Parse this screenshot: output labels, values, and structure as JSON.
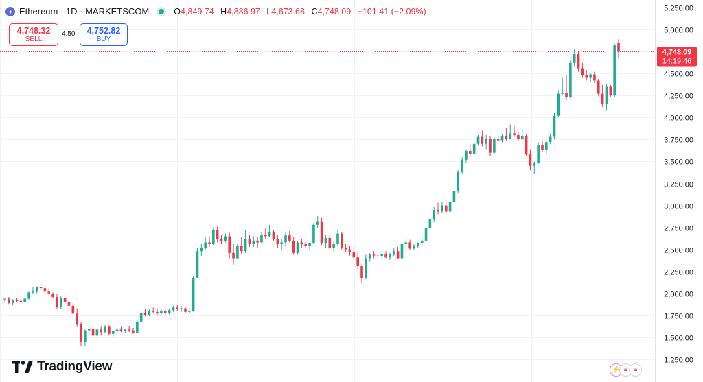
{
  "header": {
    "symbol": "Ethereum · 1D · MARKETSCOM",
    "open_label": "O",
    "open_value": "4,849.74",
    "high_label": "H",
    "high_value": "4,886.97",
    "low_label": "L",
    "low_value": "4,673.68",
    "close_label": "C",
    "close_value": "4,748.09",
    "change": "−101.41 (−2.09%)"
  },
  "trade": {
    "sell_price": "4,748.32",
    "sell_label": "SELL",
    "spread": "4.50",
    "buy_price": "4,752.82",
    "buy_label": "BUY"
  },
  "price_tag": {
    "price": "4,748.09",
    "countdown": "14:19:46"
  },
  "branding": {
    "name": "TradingView"
  },
  "colors": {
    "up": "#22ab94",
    "down": "#f23645",
    "grid": "#f0f3fa",
    "axis_text": "#131722"
  },
  "icons": [
    "ethereum-icon",
    "live-dot-icon",
    "tradingview-logo-icon",
    "bolt-icon",
    "us-flag-icon",
    "eu-flag-icon"
  ],
  "chart_data": {
    "type": "candlestick",
    "y_ticks": [
      1250,
      1500,
      1750,
      2000,
      2250,
      2500,
      2750,
      3000,
      3250,
      3500,
      3750,
      4000,
      4250,
      4500,
      4750,
      5000,
      5250
    ],
    "ylim": [
      1150,
      5300
    ],
    "grid": true,
    "last_price": 4748.09,
    "candles": [
      [
        1930,
        1950,
        1900,
        1940
      ],
      [
        1940,
        1960,
        1880,
        1890
      ],
      [
        1890,
        1935,
        1870,
        1920
      ],
      [
        1920,
        1950,
        1900,
        1915
      ],
      [
        1915,
        1935,
        1890,
        1900
      ],
      [
        1900,
        1950,
        1890,
        1940
      ],
      [
        1940,
        2020,
        1930,
        2010
      ],
      [
        2010,
        2070,
        1990,
        2020
      ],
      [
        2020,
        2080,
        2000,
        2070
      ],
      [
        2070,
        2110,
        2030,
        2060
      ],
      [
        2060,
        2090,
        2000,
        2020
      ],
      [
        2020,
        2060,
        1980,
        2000
      ],
      [
        2000,
        2010,
        1950,
        1960
      ],
      [
        1960,
        1990,
        1820,
        1850
      ],
      [
        1850,
        1970,
        1820,
        1950
      ],
      [
        1950,
        1960,
        1880,
        1900
      ],
      [
        1900,
        1930,
        1840,
        1860
      ],
      [
        1860,
        1890,
        1750,
        1770
      ],
      [
        1770,
        1830,
        1620,
        1650
      ],
      [
        1650,
        1680,
        1400,
        1450
      ],
      [
        1450,
        1600,
        1400,
        1580
      ],
      [
        1580,
        1650,
        1520,
        1600
      ],
      [
        1600,
        1620,
        1420,
        1520
      ],
      [
        1520,
        1600,
        1480,
        1590
      ],
      [
        1590,
        1620,
        1520,
        1560
      ],
      [
        1560,
        1640,
        1550,
        1620
      ],
      [
        1620,
        1640,
        1520,
        1540
      ],
      [
        1540,
        1580,
        1510,
        1570
      ],
      [
        1570,
        1610,
        1550,
        1590
      ],
      [
        1590,
        1620,
        1560,
        1575
      ],
      [
        1575,
        1600,
        1550,
        1590
      ],
      [
        1590,
        1630,
        1560,
        1580
      ],
      [
        1580,
        1610,
        1540,
        1555
      ],
      [
        1555,
        1700,
        1550,
        1680
      ],
      [
        1680,
        1800,
        1670,
        1780
      ],
      [
        1780,
        1820,
        1740,
        1750
      ],
      [
        1750,
        1820,
        1740,
        1800
      ],
      [
        1800,
        1840,
        1770,
        1790
      ],
      [
        1790,
        1830,
        1760,
        1780
      ],
      [
        1780,
        1820,
        1750,
        1800
      ],
      [
        1800,
        1830,
        1760,
        1775
      ],
      [
        1775,
        1830,
        1760,
        1810
      ],
      [
        1810,
        1860,
        1790,
        1840
      ],
      [
        1840,
        1870,
        1800,
        1820
      ],
      [
        1820,
        1860,
        1790,
        1830
      ],
      [
        1830,
        1850,
        1780,
        1790
      ],
      [
        1790,
        1830,
        1770,
        1800
      ],
      [
        1800,
        2200,
        1790,
        2180
      ],
      [
        2180,
        2520,
        2170,
        2480
      ],
      [
        2480,
        2560,
        2420,
        2520
      ],
      [
        2520,
        2640,
        2490,
        2580
      ],
      [
        2580,
        2650,
        2530,
        2560
      ],
      [
        2560,
        2750,
        2550,
        2720
      ],
      [
        2720,
        2760,
        2580,
        2620
      ],
      [
        2620,
        2660,
        2560,
        2600
      ],
      [
        2600,
        2680,
        2580,
        2650
      ],
      [
        2650,
        2690,
        2400,
        2460
      ],
      [
        2460,
        2560,
        2330,
        2400
      ],
      [
        2400,
        2560,
        2390,
        2540
      ],
      [
        2540,
        2640,
        2450,
        2480
      ],
      [
        2480,
        2720,
        2460,
        2620
      ],
      [
        2620,
        2670,
        2530,
        2560
      ],
      [
        2560,
        2650,
        2530,
        2600
      ],
      [
        2600,
        2640,
        2520,
        2580
      ],
      [
        2580,
        2700,
        2570,
        2670
      ],
      [
        2670,
        2740,
        2620,
        2650
      ],
      [
        2650,
        2780,
        2640,
        2700
      ],
      [
        2700,
        2720,
        2600,
        2620
      ],
      [
        2620,
        2660,
        2520,
        2560
      ],
      [
        2560,
        2620,
        2500,
        2580
      ],
      [
        2580,
        2700,
        2540,
        2660
      ],
      [
        2660,
        2710,
        2580,
        2600
      ],
      [
        2600,
        2640,
        2440,
        2460
      ],
      [
        2460,
        2600,
        2440,
        2580
      ],
      [
        2580,
        2620,
        2520,
        2560
      ],
      [
        2560,
        2600,
        2510,
        2540
      ],
      [
        2540,
        2580,
        2500,
        2570
      ],
      [
        2570,
        2800,
        2560,
        2780
      ],
      [
        2780,
        2880,
        2740,
        2820
      ],
      [
        2820,
        2860,
        2550,
        2570
      ],
      [
        2570,
        2660,
        2520,
        2630
      ],
      [
        2630,
        2660,
        2490,
        2520
      ],
      [
        2520,
        2600,
        2480,
        2560
      ],
      [
        2560,
        2720,
        2540,
        2680
      ],
      [
        2680,
        2700,
        2500,
        2520
      ],
      [
        2520,
        2560,
        2470,
        2500
      ],
      [
        2500,
        2540,
        2430,
        2470
      ],
      [
        2470,
        2540,
        2380,
        2410
      ],
      [
        2410,
        2480,
        2280,
        2310
      ],
      [
        2310,
        2330,
        2110,
        2170
      ],
      [
        2170,
        2440,
        2160,
        2400
      ],
      [
        2400,
        2460,
        2360,
        2440
      ],
      [
        2440,
        2480,
        2400,
        2430
      ],
      [
        2430,
        2470,
        2390,
        2420
      ],
      [
        2420,
        2460,
        2390,
        2450
      ],
      [
        2450,
        2480,
        2400,
        2410
      ],
      [
        2410,
        2460,
        2380,
        2440
      ],
      [
        2440,
        2520,
        2420,
        2480
      ],
      [
        2480,
        2530,
        2390,
        2400
      ],
      [
        2400,
        2600,
        2380,
        2560
      ],
      [
        2560,
        2620,
        2500,
        2580
      ],
      [
        2580,
        2610,
        2490,
        2510
      ],
      [
        2510,
        2560,
        2490,
        2540
      ],
      [
        2540,
        2580,
        2520,
        2570
      ],
      [
        2570,
        2650,
        2540,
        2600
      ],
      [
        2600,
        2760,
        2580,
        2740
      ],
      [
        2740,
        2860,
        2730,
        2840
      ],
      [
        2840,
        2980,
        2810,
        2950
      ],
      [
        2950,
        3030,
        2900,
        2930
      ],
      [
        2930,
        3040,
        2910,
        3000
      ],
      [
        3000,
        3050,
        2900,
        2930
      ],
      [
        2930,
        3060,
        2920,
        3040
      ],
      [
        3040,
        3180,
        3020,
        3160
      ],
      [
        3160,
        3400,
        3140,
        3380
      ],
      [
        3380,
        3550,
        3360,
        3520
      ],
      [
        3520,
        3640,
        3480,
        3620
      ],
      [
        3620,
        3700,
        3560,
        3590
      ],
      [
        3590,
        3720,
        3570,
        3700
      ],
      [
        3700,
        3800,
        3680,
        3780
      ],
      [
        3780,
        3850,
        3670,
        3700
      ],
      [
        3700,
        3800,
        3640,
        3760
      ],
      [
        3760,
        3790,
        3560,
        3600
      ],
      [
        3600,
        3780,
        3580,
        3760
      ],
      [
        3760,
        3790,
        3720,
        3740
      ],
      [
        3740,
        3810,
        3720,
        3790
      ],
      [
        3790,
        3880,
        3740,
        3760
      ],
      [
        3760,
        3920,
        3750,
        3820
      ],
      [
        3820,
        3900,
        3780,
        3800
      ],
      [
        3800,
        3830,
        3740,
        3760
      ],
      [
        3760,
        3870,
        3740,
        3790
      ],
      [
        3790,
        3810,
        3560,
        3580
      ],
      [
        3580,
        3640,
        3400,
        3450
      ],
      [
        3450,
        3500,
        3360,
        3480
      ],
      [
        3480,
        3720,
        3470,
        3690
      ],
      [
        3690,
        3740,
        3610,
        3630
      ],
      [
        3630,
        3740,
        3580,
        3720
      ],
      [
        3720,
        3820,
        3700,
        3780
      ],
      [
        3780,
        4050,
        3760,
        4020
      ],
      [
        4020,
        4300,
        4000,
        4270
      ],
      [
        4270,
        4450,
        4250,
        4280
      ],
      [
        4280,
        4480,
        4200,
        4230
      ],
      [
        4230,
        4650,
        4220,
        4620
      ],
      [
        4620,
        4780,
        4580,
        4720
      ],
      [
        4720,
        4760,
        4520,
        4560
      ],
      [
        4560,
        4620,
        4450,
        4480
      ],
      [
        4480,
        4540,
        4420,
        4450
      ],
      [
        4450,
        4510,
        4400,
        4490
      ],
      [
        4490,
        4520,
        4390,
        4420
      ],
      [
        4420,
        4440,
        4240,
        4270
      ],
      [
        4270,
        4370,
        4120,
        4150
      ],
      [
        4150,
        4380,
        4080,
        4350
      ],
      [
        4350,
        4370,
        4230,
        4250
      ],
      [
        4250,
        4840,
        4230,
        4820
      ],
      [
        4849.74,
        4886.97,
        4673.68,
        4748.09
      ]
    ]
  }
}
